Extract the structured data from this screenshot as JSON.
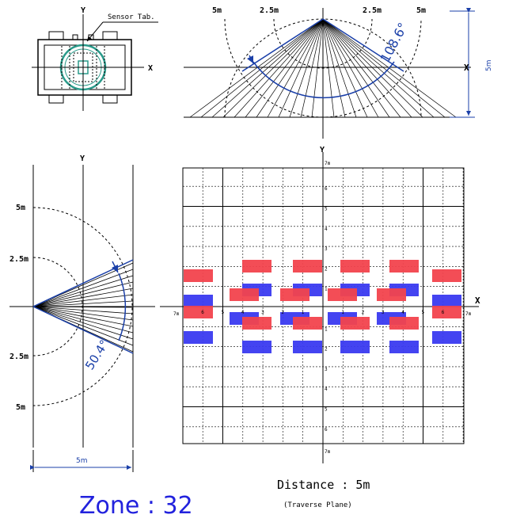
{
  "sensor": {
    "tab_label": "Sensor Tab.",
    "x_axis": "X",
    "y_axis": "Y"
  },
  "top_view": {
    "left_5m": "5m",
    "left_2_5m": "2.5m",
    "right_2_5m": "2.5m",
    "right_5m": "5m",
    "x_axis": "X",
    "angle": "108.6°",
    "height_label": "5m"
  },
  "side_view": {
    "y_axis": "Y",
    "up_5m": "5m",
    "up_2_5m": "2.5m",
    "down_2_5m": "2.5m",
    "down_5m": "5m",
    "angle": "50.4°",
    "width_label": "5m"
  },
  "plane": {
    "y_axis": "Y",
    "x_axis": "X",
    "y_top": "7m",
    "y_bottom": "7m",
    "x_left": "7m",
    "x_right": "7m",
    "y_ticks_up": [
      "6",
      "5",
      "4",
      "3",
      "2",
      "1"
    ],
    "y_ticks_down": [
      "1",
      "2",
      "3",
      "4",
      "5",
      "6"
    ],
    "x_ticks_left": [
      "6",
      "5",
      "4",
      "3",
      "2",
      "1"
    ],
    "x_ticks_right": [
      "1",
      "2",
      "3",
      "4",
      "5",
      "6"
    ],
    "zone_colors": {
      "red": "#f2434d",
      "blue": "#3a3af0"
    }
  },
  "caption": {
    "distance": "Distance : 5m",
    "plane": "(Traverse Plane)"
  },
  "zone_label": "Zone : 32"
}
